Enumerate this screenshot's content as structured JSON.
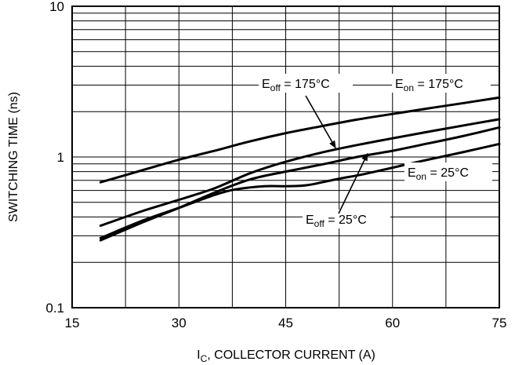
{
  "chart_data": {
    "type": "line",
    "title": "",
    "xlabel": {
      "main": "I",
      "sub": "C",
      "rest": ", COLLECTOR CURRENT (A)"
    },
    "ylabel": "SWITCHING TIME (ns)",
    "xlim": [
      15,
      75
    ],
    "ylim": [
      0.1,
      10
    ],
    "yscale": "log",
    "grid": true,
    "x_ticks": [
      15,
      30,
      45,
      60,
      75
    ],
    "x_tick_labels": [
      "15",
      "30",
      "45",
      "60",
      "75"
    ],
    "y_ticks": [
      0.1,
      1,
      10
    ],
    "y_tick_labels": [
      "0.1",
      "1",
      "10"
    ],
    "series": [
      {
        "id": "eon-175",
        "name": {
          "main": "E",
          "sub": "on",
          "rest": " = 175°C"
        },
        "x": [
          19,
          25,
          30,
          35,
          40,
          45,
          50,
          55,
          60,
          65,
          70,
          75
        ],
        "y": [
          0.68,
          0.82,
          0.96,
          1.1,
          1.27,
          1.44,
          1.6,
          1.77,
          1.93,
          2.1,
          2.28,
          2.48
        ]
      },
      {
        "id": "eoff-175",
        "name": {
          "main": "E",
          "sub": "off",
          "rest": " = 175°C"
        },
        "x": [
          19,
          25,
          30,
          35,
          40,
          45,
          50,
          55,
          60,
          65,
          70,
          75
        ],
        "y": [
          0.35,
          0.44,
          0.52,
          0.62,
          0.78,
          0.93,
          1.07,
          1.2,
          1.33,
          1.47,
          1.62,
          1.78
        ]
      },
      {
        "id": "eoff-25",
        "name": {
          "main": "E",
          "sub": "off",
          "rest": " = 25°C"
        },
        "x": [
          19,
          25,
          30,
          35,
          40,
          45,
          50,
          55,
          60,
          65,
          70,
          75
        ],
        "y": [
          0.28,
          0.37,
          0.46,
          0.58,
          0.71,
          0.8,
          0.89,
          1.0,
          1.1,
          1.23,
          1.38,
          1.57
        ]
      },
      {
        "id": "eon-25",
        "name": {
          "main": "E",
          "sub": "on",
          "rest": " = 25°C"
        },
        "x": [
          19,
          25,
          30,
          35,
          38,
          42,
          45,
          48,
          52,
          56,
          60,
          65,
          70,
          75
        ],
        "y": [
          0.29,
          0.38,
          0.46,
          0.56,
          0.61,
          0.64,
          0.64,
          0.65,
          0.71,
          0.77,
          0.85,
          0.96,
          1.08,
          1.22
        ]
      }
    ]
  }
}
